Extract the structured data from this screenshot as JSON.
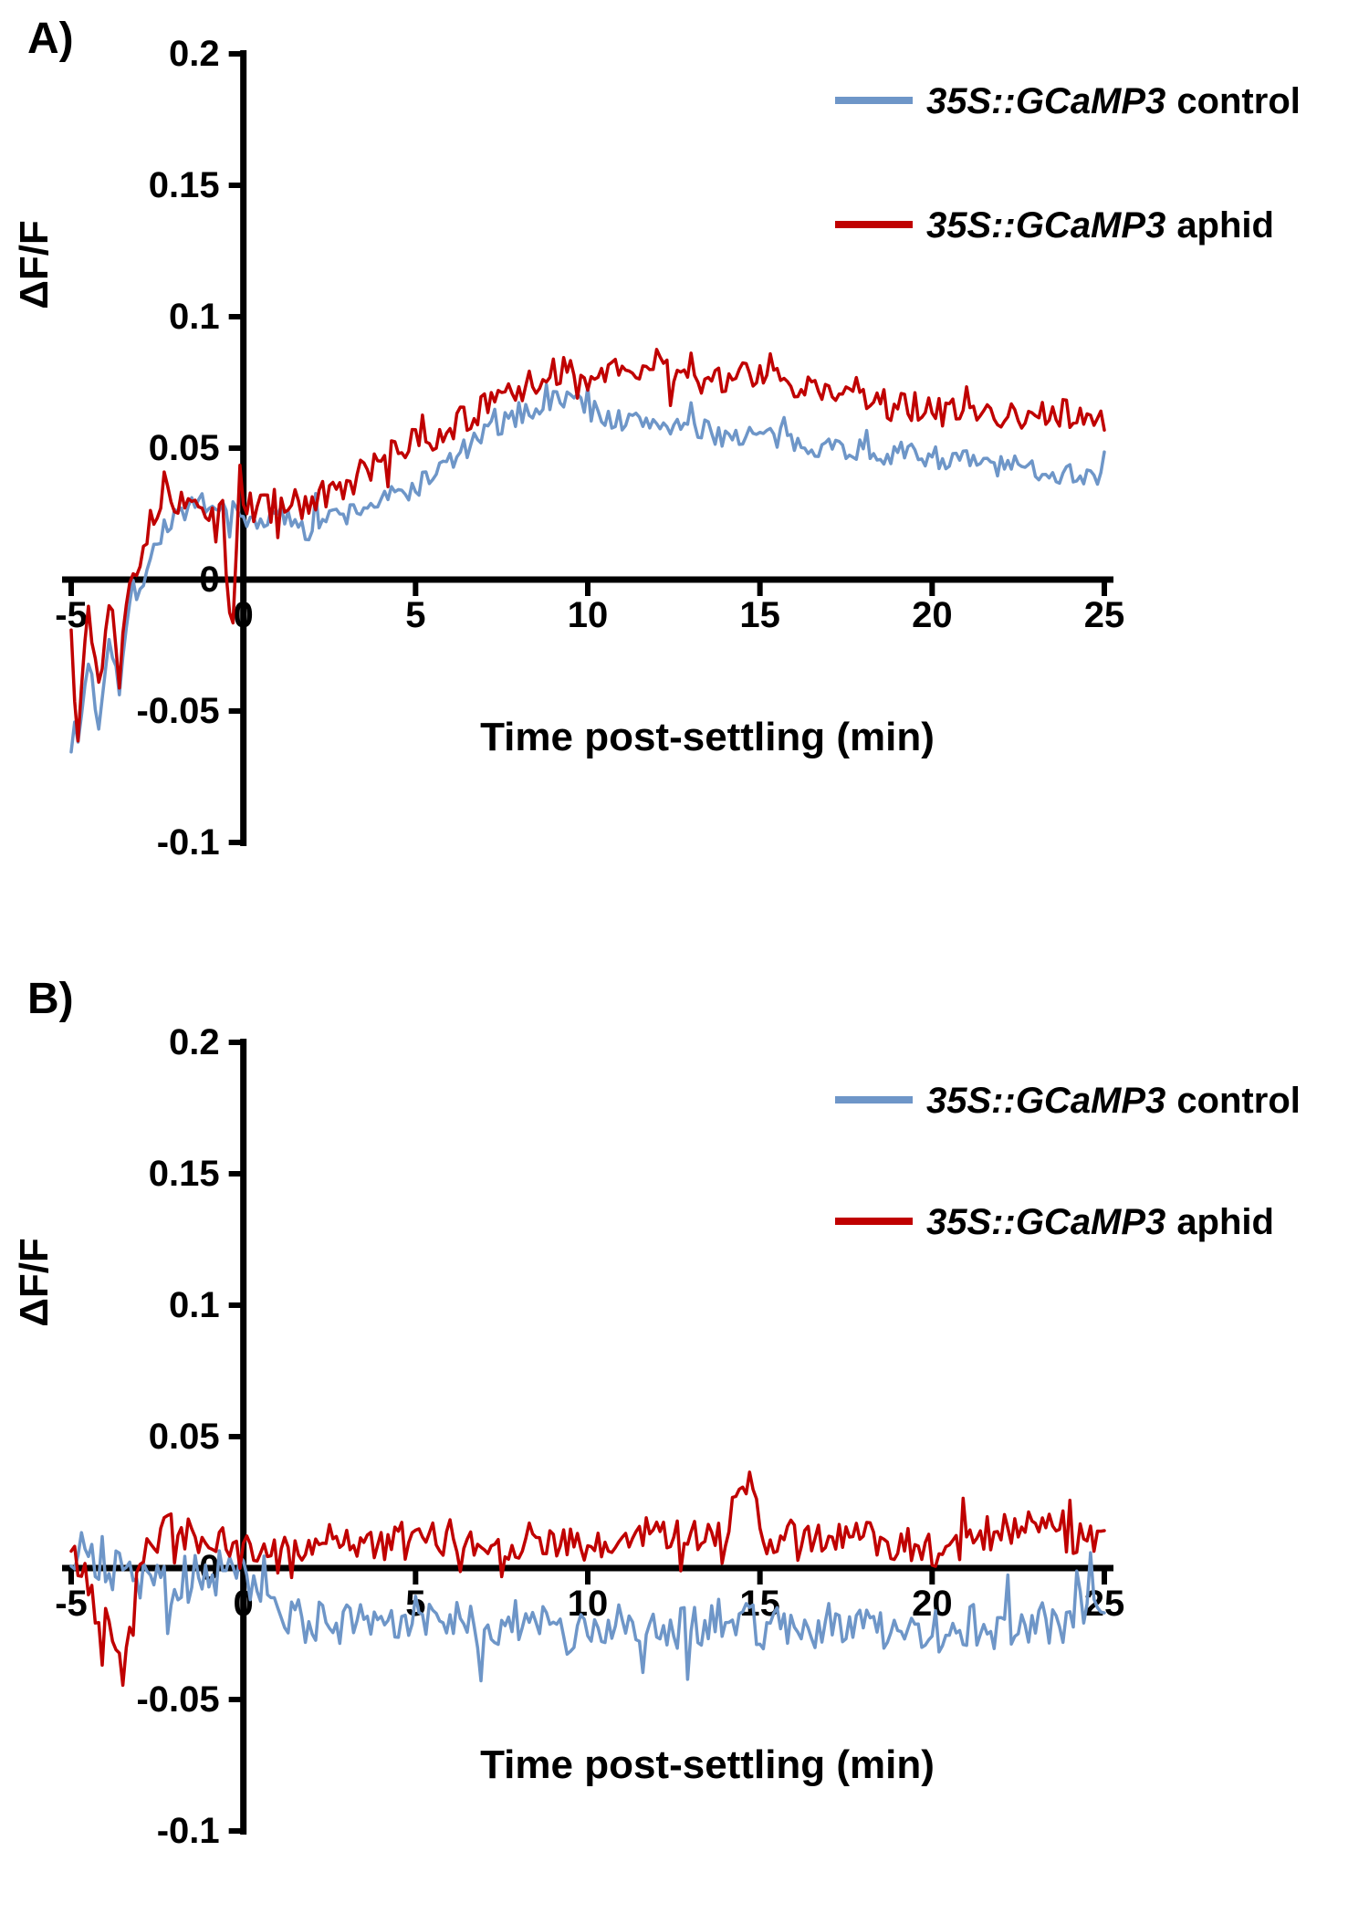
{
  "chart_data": [
    {
      "type": "line",
      "panel_label": "A)",
      "xlabel": "Time post-settling (min)",
      "ylabel": "ΔF/F",
      "xlim": [
        -5,
        25
      ],
      "ylim": [
        -0.1,
        0.2
      ],
      "xticks": [
        -5,
        0,
        5,
        10,
        15,
        20,
        25
      ],
      "xtick_labels": [
        "-5",
        "0",
        "5",
        "10",
        "15",
        "20",
        "25"
      ],
      "yticks": [
        -0.1,
        -0.05,
        0,
        0.05,
        0.1,
        0.15,
        0.2
      ],
      "ytick_labels": [
        "-0.1",
        "-0.05",
        "0",
        "0.05",
        "0.1",
        "0.15",
        "0.2"
      ],
      "grid": false,
      "legend_position": "top-right",
      "legend": [
        {
          "label_italic": "35S::GCaMP3",
          "label_rest": "control",
          "color": "#6E96C8"
        },
        {
          "label_italic": "35S::GCaMP3",
          "label_rest": "aphid",
          "color": "#C00000"
        }
      ],
      "series": [
        {
          "name": "35S::GCaMP3 control",
          "color": "#6E96C8",
          "noise": 0.0045,
          "seed": 7,
          "x": [
            -5,
            -4.8,
            -4.5,
            -4.2,
            -3.9,
            -3.6,
            -3.3,
            -3,
            -2.5,
            -2,
            -1.5,
            -1,
            -0.5,
            0,
            1,
            2,
            3,
            4,
            5,
            6,
            7,
            8,
            9,
            9.5,
            10,
            11,
            12,
            13,
            14,
            15,
            16,
            17,
            18,
            19,
            20,
            21,
            22,
            23,
            24,
            25
          ],
          "y": [
            -0.055,
            -0.062,
            -0.03,
            -0.055,
            -0.02,
            -0.04,
            -0.01,
            -0.002,
            0.015,
            0.025,
            0.027,
            0.025,
            0.028,
            0.022,
            0.024,
            0.022,
            0.025,
            0.03,
            0.035,
            0.045,
            0.055,
            0.063,
            0.068,
            0.07,
            0.065,
            0.06,
            0.06,
            0.057,
            0.055,
            0.055,
            0.052,
            0.051,
            0.049,
            0.048,
            0.047,
            0.045,
            0.043,
            0.042,
            0.04,
            0.04
          ]
        },
        {
          "name": "35S::GCaMP3 aphid",
          "color": "#C00000",
          "noise": 0.006,
          "seed": 13,
          "x": [
            -5,
            -4.8,
            -4.5,
            -4.2,
            -3.9,
            -3.6,
            -3.3,
            -3,
            -2.6,
            -2.4,
            -2.2,
            -2,
            -1.5,
            -1,
            -0.6,
            -0.35,
            -0.2,
            -0.1,
            0,
            0.5,
            1,
            2,
            3,
            4,
            5,
            6,
            7,
            8,
            9,
            9.5,
            10,
            11,
            12,
            13,
            14,
            15,
            15.5,
            16,
            17,
            18,
            19,
            20,
            21,
            22,
            23,
            23.5,
            24,
            25
          ],
          "y": [
            -0.02,
            -0.048,
            -0.012,
            -0.04,
            -0.008,
            -0.028,
            0.002,
            0.01,
            0.025,
            0.03,
            0.04,
            0.03,
            0.028,
            0.026,
            0.025,
            -0.028,
            0.012,
            0.045,
            0.027,
            0.028,
            0.027,
            0.03,
            0.035,
            0.045,
            0.052,
            0.058,
            0.065,
            0.072,
            0.078,
            0.08,
            0.078,
            0.078,
            0.082,
            0.077,
            0.076,
            0.078,
            0.082,
            0.075,
            0.072,
            0.068,
            0.066,
            0.065,
            0.062,
            0.062,
            0.062,
            0.066,
            0.063,
            0.06
          ]
        }
      ]
    },
    {
      "type": "line",
      "panel_label": "B)",
      "xlabel": "Time post-settling (min)",
      "ylabel": "ΔF/F",
      "xlim": [
        -5,
        25
      ],
      "ylim": [
        -0.1,
        0.2
      ],
      "xticks": [
        -5,
        0,
        5,
        10,
        15,
        20,
        25
      ],
      "xtick_labels": [
        "-5",
        "0",
        "5",
        "10",
        "15",
        "20",
        "25"
      ],
      "yticks": [
        -0.1,
        -0.05,
        0,
        0.05,
        0.1,
        0.15,
        0.2
      ],
      "ytick_labels": [
        "-0.1",
        "-0.05",
        "0",
        "0.05",
        "0.1",
        "0.15",
        "0.2"
      ],
      "grid": false,
      "legend_position": "top-right",
      "legend": [
        {
          "label_italic": "35S::GCaMP3",
          "label_rest": "control",
          "color": "#6E96C8"
        },
        {
          "label_italic": "35S::GCaMP3",
          "label_rest": "aphid",
          "color": "#C00000"
        }
      ],
      "series": [
        {
          "name": "35S::GCaMP3 control",
          "color": "#6E96C8",
          "noise": 0.009,
          "seed": 21,
          "x": [
            -5,
            -4.5,
            -4,
            -3.5,
            -3,
            -2.5,
            -2,
            -1.5,
            -1,
            -0.5,
            0,
            0.5,
            1,
            1.5,
            2,
            3,
            4,
            5,
            6,
            7,
            8,
            9,
            10,
            11,
            12,
            13,
            14,
            15,
            16,
            17,
            18,
            19,
            20,
            21,
            22,
            23,
            24,
            24.5,
            25
          ],
          "y": [
            0.002,
            0.01,
            -0.005,
            0.005,
            -0.008,
            0.003,
            -0.01,
            0.0,
            -0.005,
            0.002,
            -0.005,
            -0.012,
            -0.018,
            -0.02,
            -0.022,
            -0.02,
            -0.022,
            -0.018,
            -0.02,
            -0.022,
            -0.02,
            -0.025,
            -0.022,
            -0.02,
            -0.024,
            -0.022,
            -0.02,
            -0.022,
            -0.023,
            -0.021,
            -0.024,
            -0.022,
            -0.025,
            -0.022,
            -0.024,
            -0.022,
            -0.02,
            -0.01,
            -0.022
          ]
        },
        {
          "name": "35S::GCaMP3 aphid",
          "color": "#C00000",
          "noise": 0.007,
          "seed": 42,
          "x": [
            -5,
            -4.7,
            -4.4,
            -4.1,
            -3.8,
            -3.5,
            -3.2,
            -3,
            -2.5,
            -2,
            -1.5,
            -1,
            -0.5,
            0,
            0.5,
            1,
            2,
            3,
            4,
            5,
            6,
            7,
            8,
            9,
            10,
            11,
            12,
            13,
            14,
            14.8,
            15,
            16,
            17,
            18,
            19,
            20,
            20.5,
            21,
            22,
            23,
            24,
            25
          ],
          "y": [
            0.005,
            0.0,
            -0.01,
            -0.03,
            -0.02,
            -0.04,
            -0.01,
            0.005,
            0.012,
            0.015,
            0.012,
            0.01,
            0.008,
            0.005,
            0.008,
            0.005,
            0.01,
            0.012,
            0.008,
            0.01,
            0.012,
            0.008,
            0.01,
            0.012,
            0.005,
            0.01,
            0.015,
            0.012,
            0.015,
            0.035,
            0.01,
            0.01,
            0.012,
            0.012,
            0.01,
            0.008,
            0.002,
            0.012,
            0.012,
            0.015,
            0.012,
            0.013
          ]
        }
      ]
    }
  ]
}
